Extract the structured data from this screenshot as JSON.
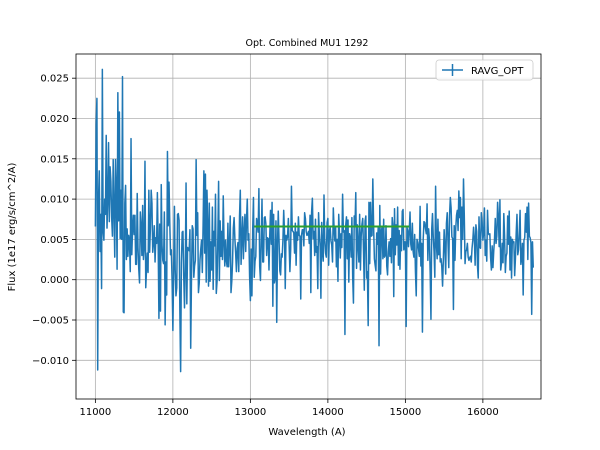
{
  "chart_data": {
    "type": "line",
    "title": "Opt. Combined MU1 1292",
    "xlabel": "Wavelength (A)",
    "ylabel": "Flux (1e17 erg/s/cm^2/A)",
    "xlim": [
      10750,
      16750
    ],
    "ylim": [
      -0.0148,
      0.028
    ],
    "xticks": [
      11000,
      12000,
      13000,
      14000,
      15000,
      16000
    ],
    "xtick_labels": [
      "11000",
      "12000",
      "13000",
      "14000",
      "15000",
      "16000"
    ],
    "yticks": [
      -0.01,
      -0.005,
      0.0,
      0.005,
      0.01,
      0.015,
      0.02,
      0.025
    ],
    "ytick_labels": [
      "−0.010",
      "−0.005",
      "0.000",
      "0.005",
      "0.010",
      "0.015",
      "0.020",
      "0.025"
    ],
    "grid": true,
    "legend_position": "top-right",
    "series": [
      {
        "name": "RAVG_OPT",
        "color": "#1f77b4",
        "style": "errorbar-line",
        "x_start": 11000,
        "x_step": 10,
        "y": [
          0.0066,
          0.0192,
          0.0225,
          -0.0112,
          0.0098,
          0.0135,
          0.0035,
          0.0081,
          -0.0011,
          0.0261,
          0.006,
          0.0049,
          0.01,
          0.0081,
          0.0179,
          0.0064,
          0.0099,
          0.017,
          0.0072,
          0.014,
          0.0122,
          0.0078,
          0.0054,
          0.0149,
          0.0087,
          0.0028,
          0.0149,
          0.0111,
          0.0013,
          0.0232,
          0.0073,
          0.0208,
          0.0051,
          0.0111,
          0.005,
          0.0252,
          -0.004,
          -0.0041,
          0.0095,
          0.0117,
          0.0025,
          0.0063,
          0.0029,
          0.0055,
          0.0048,
          0.001,
          0.0175,
          0.0031,
          0.0062,
          0.008,
          0.0056,
          0.008,
          0.0019,
          0.0019,
          0.0107,
          0.004,
          0.0013,
          -0.0004,
          0.0084,
          0.0067,
          0.003,
          0.0092,
          0.0025,
          0.004,
          0.0147,
          -0.001,
          0.0013,
          0.0033,
          0.0009,
          0.0111,
          0.0034,
          0.0064,
          0.0111,
          0.0095,
          0.0034,
          0.0046,
          0.0067,
          0.0022,
          0.0052,
          0.0045,
          0.0108,
          0.0047,
          -0.0048,
          0.0069,
          -0.0039,
          0.0118,
          0.0043,
          0.0024,
          0.002,
          0.0084,
          -0.0056,
          0.0022,
          -0.0019,
          0.0159,
          0.0067,
          0.0121,
          0.0071,
          0.0031,
          0.0037,
          -0.0001,
          -0.0063,
          0.0009,
          0.0091,
          0.0012,
          -0.002,
          -0.001,
          0.0081,
          0.0082,
          0.0074,
          -0.0038,
          -0.0114,
          0.0021,
          0.0059,
          0.006,
          0.0005,
          -0.0035,
          0.0013,
          0.012,
          -0.003,
          0.004,
          0.0038,
          0.0036,
          0.0062,
          -0.0085,
          0.0,
          0.0067,
          0.0063,
          0.0003,
          0.0017,
          0.0024,
          0.0149,
          0.0055,
          0.0083,
          -0.0016,
          -0.0004,
          0.0025,
          0.0038,
          0.0049,
          0.0009,
          0.0068,
          0.0135,
          0.0033,
          0.0131,
          -0.0003,
          0.0111,
          0.0069,
          -0.0008,
          0.0095,
          -0.0002,
          0.0047,
          0.0012,
          0.009,
          -0.0012,
          0.006,
          0.0042,
          0.0106,
          -0.0017,
          -0.0002,
          0.0051,
          0.0122,
          -0.0001,
          0.0073,
          0.0029,
          0.006,
          0.0025,
          0.0104,
          0.0046,
          0.0017,
          0.0049,
          0.0024,
          0.0016,
          0.007,
          0.0016,
          0.0041,
          0.0079,
          -0.0016,
          -0.0002,
          0.0022,
          0.0064,
          0.0077,
          0.0051,
          0.0033,
          0.001,
          0.0039,
          0.0046,
          0.001,
          0.0079,
          0.0111,
          0.0019,
          0.0051,
          0.0078,
          0.0026,
          0.006,
          0.0081,
          0.0035,
          0.0074,
          0.01,
          0.0049,
          0.0057,
          0.0004,
          -0.0026,
          0.0038,
          -0.002,
          0.0062,
          0.0102,
          0.0003,
          0.0023,
          0.0029,
          0.0076,
          0.0069,
          0.0059,
          0.0113,
          0.0017,
          -0.0001,
          0.0051,
          0.01,
          0.0022,
          0.0022,
          0.0077,
          0.0078,
          0.0069,
          0.003,
          0.0052,
          0.0051,
          0.0012,
          0.0055,
          0.0086,
          0.0044,
          0.0096,
          -0.0033,
          0.0081,
          -0.0004,
          0.0002,
          0.0073,
          -0.0053,
          0.0044,
          0.0085,
          0.0048,
          0.0011,
          0.0006,
          0.0032,
          0.0028,
          0.0049,
          0.0086,
          0.006,
          -0.0011,
          0.0055,
          0.0049,
          0.0054,
          0.0076,
          0.0043,
          0.001,
          0.0038,
          0.0116,
          0.0061,
          0.006,
          0.0058,
          0.0033,
          0.007,
          0.0018,
          0.0059,
          0.0049,
          0.0078,
          0.0055,
          0.0054,
          -0.0024,
          0.0055,
          0.0062,
          0.0062,
          0.0042,
          0.0083,
          0.0076,
          0.006,
          0.0055,
          0.0056,
          0.006,
          0.0045,
          0.008,
          -0.0016,
          0.0084,
          0.0101,
          0.0051,
          0.006,
          0.003,
          0.0075,
          0.0034,
          0.0041,
          -0.0011,
          0.0083,
          0.0057,
          0.0041,
          -0.0023,
          0.0071,
          0.0034,
          0.0023,
          0.0105,
          0.0049,
          0.0033,
          0.0028,
          0.0071,
          0.0076,
          0.0018,
          0.0061,
          0.0065,
          0.0048,
          0.0043,
          0.0022,
          0.0089,
          0.0064,
          0.0048,
          0.0065,
          0.0016,
          0.005,
          -0.0002,
          0.0081,
          0.0056,
          0.0027,
          0.0057,
          0.004,
          0.0106,
          0.0059,
          0.0061,
          -0.0068,
          0.0067,
          0.0078,
          0.0026,
          0.0074,
          -0.0003,
          0.0057,
          0.0052,
          0.0028,
          0.0077,
          0.0003,
          -0.0029,
          0.0079,
          0.0066,
          0.0108,
          0.0014,
          0.0068,
          0.0044,
          0.0022,
          0.0081,
          0.0012,
          0.0054,
          0.0069,
          0.0076,
          0.0035,
          -0.0013,
          0.0073,
          0.0079,
          0.0002,
          0.001,
          -0.0057,
          0.0096,
          0.002,
          0.0096,
          0.0054,
          0.0055,
          0.0125,
          0.0067,
          0.0026,
          0.0018,
          0.0011,
          0.0058,
          0.0044,
          0.0066,
          -0.0082,
          0.0092,
          0.0007,
          0.006,
          0.0066,
          0.0026,
          0.0075,
          0.0028,
          0.003,
          0.0067,
          0.0017,
          0.0006,
          0.0035,
          0.0047,
          0.0029,
          0.0051,
          0.0021,
          0.0077,
          0.0066,
          -0.0021,
          0.0088,
          0.0031,
          0.0068,
          0.0043,
          0.009,
          0.0018,
          0.0061,
          0.0013,
          0.0055,
          0.0036,
          0.0085,
          0.0087,
          0.0037,
          0.0047,
          0.0047,
          -0.0058,
          0.0065,
          0.0061,
          0.0041,
          0.006,
          0.0084,
          0.0044,
          0.0037,
          0.007,
          0.0035,
          0.0028,
          0.0056,
          0.001,
          -0.002,
          0.005,
          0.0046,
          0.0038,
          0.0029,
          0.0091,
          0.0017,
          0.0045,
          -0.0065,
          0.005,
          0.0072,
          0.0071,
          0.0063,
          0.0057,
          0.0094,
          0.0024,
          0.0063,
          0.005,
          0.0009,
          -0.0049,
          0.0063,
          0.0082,
          0.0053,
          0.0035,
          0.0003,
          0.0116,
          0.0045,
          0.0026,
          0.0075,
          0.0031,
          0.0059,
          0.0022,
          0.0026,
          0.0016,
          -0.0008,
          0.0025,
          0.0062,
          0.0041,
          0.0007,
          0.007,
          0.0083,
          0.0047,
          0.0015,
          0.008,
          0.0102,
          0.0089,
          0.0053,
          0.0051,
          -0.0037,
          0.0067,
          0.0024,
          0.0064,
          0.008,
          0.0086,
          0.0061,
          0.011,
          0.0077,
          0.0102,
          0.0026,
          0.009,
          0.005,
          0.0125,
          0.0081,
          0.002,
          0.0035,
          0.0037,
          0.0045,
          0.0028,
          0.0024,
          0.0027,
          0.0029,
          0.0022,
          0.0039,
          0.0049,
          0.0065,
          0.0051,
          0.0018,
          0.0068,
          0.006,
          0.0018,
          0.0002,
          0.0078,
          0.004,
          0.0039,
          0.0083,
          0.0071,
          0.0049,
          0.0058,
          0.0089,
          0.003,
          0.0049,
          0.0023,
          0.0086,
          0.0057,
          0.0056,
          0.0057,
          0.0027,
          0.0012,
          0.0042,
          0.0015,
          0.0035,
          0.005,
          0.0076,
          0.0045,
          0.0054,
          0.0096,
          0.0077,
          0.0041,
          0.0099,
          0.0012,
          0.0021,
          0.0045,
          0.0021,
          0.0082,
          0.0055,
          0.0009,
          0.0029,
          0.0033,
          0.0079,
          0.0044,
          0.0085,
          0.0012,
          0.0053,
          0.0002,
          0.005,
          0.0046,
          0.0047,
          0.0005,
          0.0026,
          0.0058,
          0.0081,
          0.0031,
          0.0037,
          0.006,
          0.0086,
          0.0019,
          0.0027,
          0.0045,
          -0.0019,
          0.0049,
          0.0052,
          0.0082,
          0.0059,
          0.009,
          0.0025,
          0.0095,
          0.0054,
          0.0052,
          0.0046,
          -0.0043,
          0.0047,
          0.0015
        ]
      },
      {
        "color": "#2ca02c",
        "style": "line",
        "x": [
          13050,
          15050
        ],
        "y": [
          0.0066,
          0.0066
        ]
      }
    ]
  }
}
